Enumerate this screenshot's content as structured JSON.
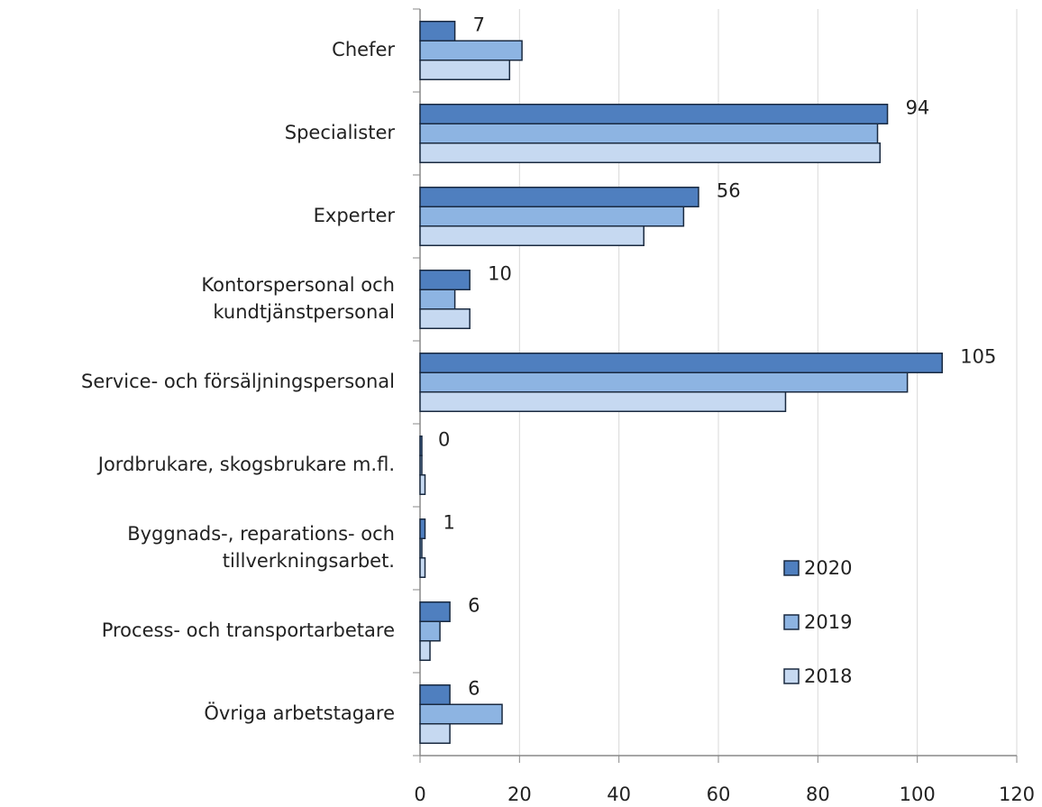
{
  "chart_data": {
    "type": "bar",
    "orientation": "horizontal",
    "categories": [
      [
        "Chefer"
      ],
      [
        "Specialister"
      ],
      [
        "Experter"
      ],
      [
        "Kontorspersonal och",
        "kundtjänstpersonal"
      ],
      [
        "Service- och försäljningspersonal"
      ],
      [
        "Jordbrukare, skogsbrukare m.fl."
      ],
      [
        "Byggnads-, reparations- och",
        "tillverkningsarbet."
      ],
      [
        "Process- och transportarbetare"
      ],
      [
        "Övriga arbetstagare"
      ]
    ],
    "series": [
      {
        "name": "2020",
        "color": "#4f7fbf",
        "values": [
          7,
          94,
          56,
          10,
          105,
          0,
          1,
          6,
          6
        ],
        "data_labels": true
      },
      {
        "name": "2019",
        "color": "#8db4e2",
        "values": [
          20.5,
          92,
          53,
          7,
          98,
          0,
          0,
          4,
          16.5
        ]
      },
      {
        "name": "2018",
        "color": "#c6d9f1",
        "values": [
          18,
          92.5,
          45,
          10,
          73.5,
          1,
          1,
          2,
          6
        ]
      }
    ],
    "xlim": [
      0,
      120
    ],
    "xticks": [
      0,
      20,
      40,
      60,
      80,
      100,
      120
    ],
    "grid": true,
    "legend": "lower right"
  }
}
